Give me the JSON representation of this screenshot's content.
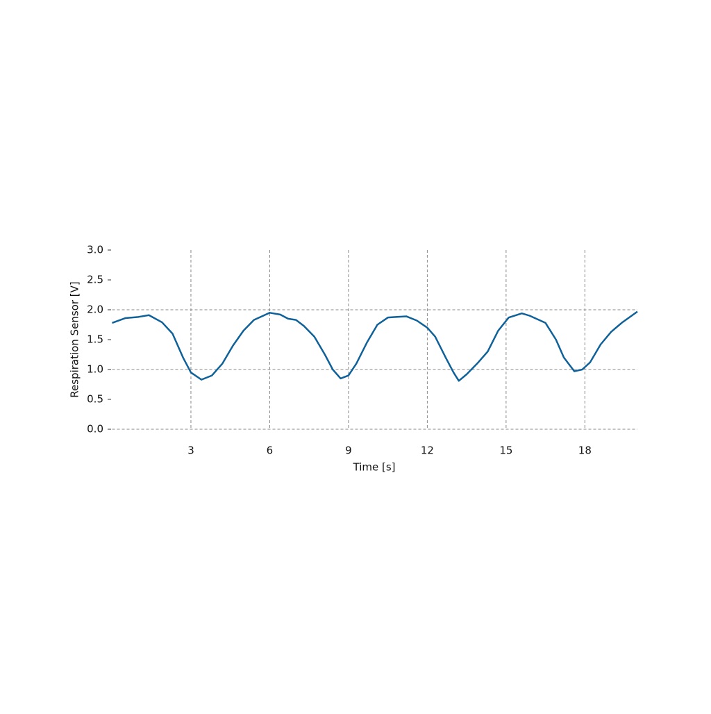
{
  "chart_data": {
    "type": "line",
    "x_label": "Time [s]",
    "y_label": "Respiration Sensor [V]",
    "x": [
      0,
      0.5,
      1.0,
      1.4,
      1.9,
      2.3,
      2.7,
      3.0,
      3.4,
      3.8,
      4.2,
      4.6,
      5.0,
      5.4,
      6.0,
      6.4,
      6.7,
      7.0,
      7.3,
      7.7,
      8.1,
      8.4,
      8.7,
      9.0,
      9.3,
      9.7,
      10.1,
      10.5,
      10.8,
      11.2,
      11.6,
      12.0,
      12.3,
      12.7,
      13.0,
      13.2,
      13.5,
      13.9,
      14.3,
      14.7,
      15.1,
      15.6,
      15.9,
      16.2,
      16.5,
      16.9,
      17.2,
      17.6,
      17.9,
      18.2,
      18.6,
      19.0,
      19.4,
      20.0
    ],
    "series": [
      {
        "color": "#0f6199",
        "values": [
          1.78,
          1.86,
          1.88,
          1.91,
          1.79,
          1.6,
          1.2,
          0.95,
          0.83,
          0.9,
          1.1,
          1.4,
          1.65,
          1.83,
          1.95,
          1.92,
          1.85,
          1.83,
          1.73,
          1.55,
          1.25,
          1.0,
          0.85,
          0.9,
          1.1,
          1.45,
          1.75,
          1.87,
          1.88,
          1.89,
          1.82,
          1.7,
          1.55,
          1.2,
          0.95,
          0.81,
          0.92,
          1.1,
          1.3,
          1.65,
          1.87,
          1.94,
          1.9,
          1.84,
          1.78,
          1.5,
          1.2,
          0.97,
          1.0,
          1.12,
          1.42,
          1.63,
          1.78,
          1.97
        ]
      }
    ],
    "xlim": [
      0,
      20
    ],
    "xticks": [
      3,
      6,
      9,
      12,
      15,
      18
    ],
    "ylim": [
      0,
      3
    ],
    "yticks": [
      {
        "value": 0,
        "label": "0.0"
      },
      0.5,
      {
        "value": 1,
        "label": "1.0"
      },
      1.5,
      {
        "value": 2,
        "label": "2.0"
      },
      2.5,
      {
        "value": 3,
        "label": "3.0"
      }
    ],
    "ygrid": [
      0,
      1,
      2
    ]
  }
}
